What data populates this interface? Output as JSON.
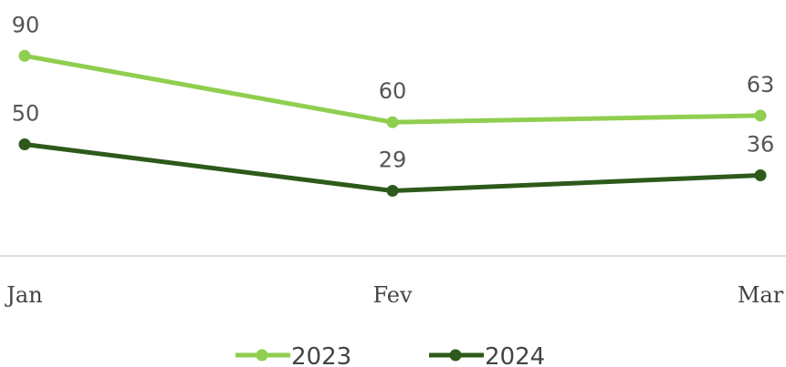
{
  "chart_data": {
    "type": "line",
    "categories": [
      "Jan",
      "Fev",
      "Mar"
    ],
    "series": [
      {
        "name": "2023",
        "color": "#8fce4f",
        "values": [
          90,
          60,
          63
        ]
      },
      {
        "name": "2024",
        "color": "#2d5a1b",
        "values": [
          50,
          29,
          36
        ]
      }
    ],
    "ylim": [
      0,
      100
    ]
  }
}
